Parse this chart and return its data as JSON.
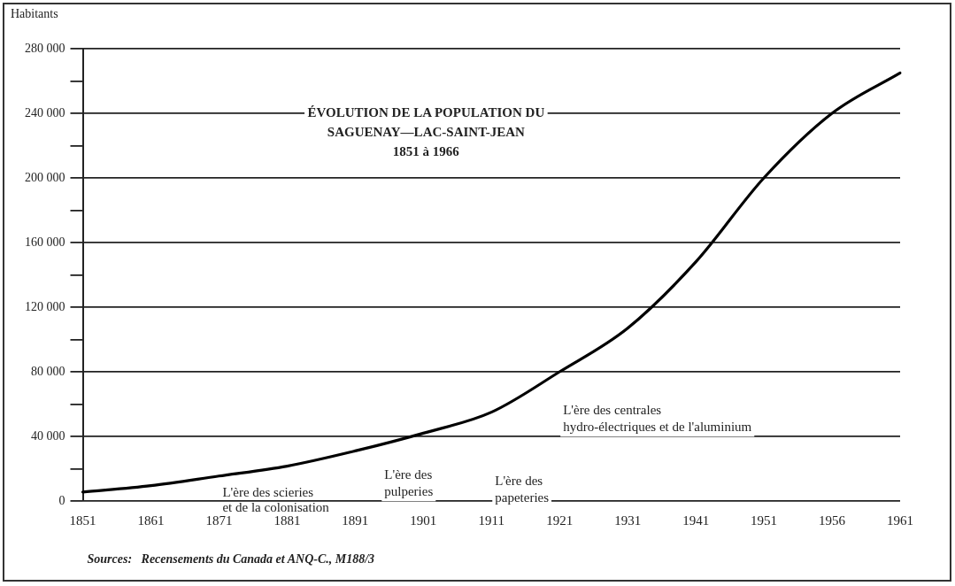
{
  "chart_data": {
    "type": "line",
    "title": "ÉVOLUTION DE LA POPULATION DU SAGUENAY—LAC-SAINT-JEAN",
    "subtitle": "1851 à 1966",
    "ylabel": "Habitants",
    "categories": [
      "1851",
      "1861",
      "1871",
      "1881",
      "1891",
      "1901",
      "1911",
      "1921",
      "1931",
      "1941",
      "1951",
      "1956",
      "1961"
    ],
    "series": [
      {
        "color": "#000000",
        "values": [
          5500,
          9500,
          15500,
          21600,
          31000,
          42000,
          55000,
          80000,
          107000,
          148000,
          200000,
          240000,
          265000
        ]
      }
    ],
    "ylim": [
      0,
      280000
    ],
    "yticks": [
      {
        "value": 0,
        "label": "0"
      },
      {
        "value": 20000,
        "label": null
      },
      {
        "value": 40000,
        "label": "40 000"
      },
      {
        "value": 60000,
        "label": null
      },
      {
        "value": 80000,
        "label": "80 000"
      },
      {
        "value": 100000,
        "label": null
      },
      {
        "value": 120000,
        "label": "120 000"
      },
      {
        "value": 140000,
        "label": null
      },
      {
        "value": 160000,
        "label": "160 000"
      },
      {
        "value": 180000,
        "label": null
      },
      {
        "value": 200000,
        "label": "200 000"
      },
      {
        "value": 220000,
        "label": null
      },
      {
        "value": 240000,
        "label": "240 000"
      },
      {
        "value": 260000,
        "label": null
      },
      {
        "value": 280000,
        "label": "280 000"
      }
    ],
    "annotations": [
      "L'ère des scieries\net de la colonisation",
      "L'ère des\npulperies",
      "L'ère des\npapeteries",
      "L'ère des centrales\nhydro-électriques et de l'aluminium",
      "Sources:   Recensements du Canada et ANQ-C., M188/3"
    ],
    "grid": "y",
    "legend": false,
    "marker": "none",
    "line_style": "solid"
  }
}
